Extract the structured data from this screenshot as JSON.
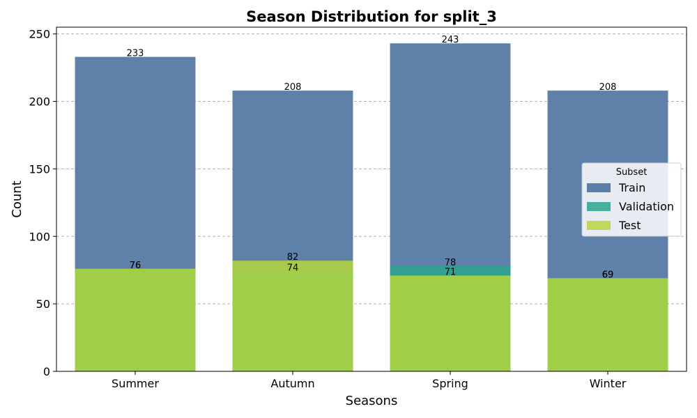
{
  "chart_data": {
    "type": "bar",
    "title": "Season Distribution for split_3",
    "xlabel": "Seasons",
    "ylabel": "Count",
    "categories": [
      "Summer",
      "Autumn",
      "Spring",
      "Winter"
    ],
    "series": [
      {
        "name": "Train",
        "values": [
          233,
          208,
          243,
          208
        ],
        "color": "#4c72a0",
        "opacity": 0.9
      },
      {
        "name": "Validation",
        "values": [
          76,
          74,
          78,
          69
        ],
        "color": "#2ca58d",
        "opacity": 0.85
      },
      {
        "name": "Test",
        "values": [
          76,
          82,
          71,
          69
        ],
        "color": "#b5d63c",
        "opacity": 0.85
      }
    ],
    "ylim": [
      0,
      255
    ],
    "yticks": [
      0,
      50,
      100,
      150,
      200,
      250
    ],
    "grid": true,
    "legend": {
      "title": "Subset",
      "placement": "center-right"
    }
  }
}
